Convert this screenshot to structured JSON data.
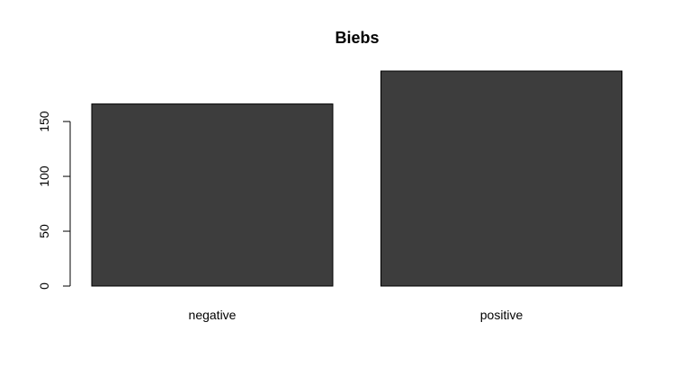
{
  "chart_data": {
    "type": "bar",
    "title": "Biebs",
    "xlabel": "",
    "ylabel": "",
    "categories": [
      "negative",
      "positive"
    ],
    "values": [
      166,
      196
    ],
    "ylim": [
      0,
      196
    ],
    "yticks": [
      0,
      50,
      100,
      150
    ],
    "ytick_labels": [
      "0",
      "50",
      "100",
      "150"
    ],
    "bar_color": "#3d3d3d",
    "border_color": "#000000",
    "grid": false,
    "legend": "none"
  }
}
